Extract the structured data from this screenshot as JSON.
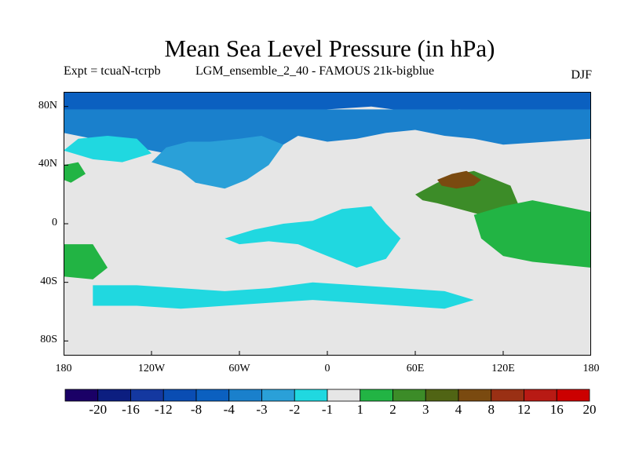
{
  "chart_data": {
    "type": "heatmap",
    "title": "Mean Sea Level Pressure (in hPa)",
    "left_annotation": "Expt = tcuaN-tcrpb",
    "center_annotation": "LGM_ensemble_2_40 - FAMOUS 21k-bigblue",
    "season": "DJF",
    "projection": "cylindrical-equidistant",
    "lon_range": [
      -180,
      180
    ],
    "lat_range": [
      -90,
      90
    ],
    "x_tick_labels": [
      "180",
      "120W",
      "60W",
      "0",
      "60E",
      "120E",
      "180"
    ],
    "y_tick_labels": [
      "80N",
      "40N",
      "0",
      "40S",
      "80S"
    ],
    "colorbar": {
      "levels": [
        "-20",
        "-16",
        "-12",
        "-8",
        "-4",
        "-3",
        "-2",
        "-1",
        "1",
        "2",
        "3",
        "4",
        "8",
        "12",
        "16",
        "20"
      ],
      "colors": [
        "#1a0066",
        "#0c1e80",
        "#1438a0",
        "#0a4db3",
        "#0b60c0",
        "#1a80cc",
        "#2aa0d8",
        "#20d8e0",
        "#e6e6e6",
        "#22b444",
        "#3c8c28",
        "#506414",
        "#7a4a10",
        "#9a3014",
        "#b81a14",
        "#cc0000"
      ]
    },
    "regions": [
      {
        "name": "arctic-low",
        "category": "-8 to -4",
        "lons": [
          -180,
          -150,
          -120,
          -90,
          -60,
          -30,
          0,
          30,
          60,
          90,
          120,
          150,
          180,
          180,
          -180
        ],
        "lats": [
          75,
          76,
          72,
          74,
          76,
          72,
          78,
          80,
          76,
          78,
          76,
          74,
          75,
          90,
          90
        ]
      },
      {
        "name": "northern-midlat-negative",
        "category": "-4 to -3",
        "lons": [
          -180,
          -150,
          -120,
          -100,
          -80,
          -60,
          -40,
          -20,
          0,
          20,
          40,
          60,
          80,
          100,
          120,
          150,
          180,
          180,
          -180
        ],
        "lats": [
          62,
          56,
          50,
          46,
          38,
          44,
          48,
          60,
          56,
          58,
          62,
          64,
          60,
          58,
          54,
          56,
          58,
          78,
          78
        ]
      },
      {
        "name": "north-america-atlantic-negative",
        "category": "-3 to -2",
        "lons": [
          -120,
          -100,
          -90,
          -70,
          -55,
          -40,
          -30,
          -45,
          -60,
          -80,
          -95,
          -110
        ],
        "lats": [
          42,
          36,
          28,
          24,
          30,
          40,
          54,
          60,
          58,
          56,
          56,
          52
        ]
      },
      {
        "name": "north-pacific-negative",
        "category": "-2 to -1",
        "lons": [
          -180,
          -160,
          -140,
          -120,
          -130,
          -150,
          -170
        ],
        "lats": [
          50,
          44,
          42,
          48,
          58,
          60,
          58
        ]
      },
      {
        "name": "tropical-atlantic-africa-negative",
        "category": "-2 to -1",
        "lons": [
          -70,
          -50,
          -30,
          -10,
          10,
          30,
          40,
          50,
          40,
          20,
          0,
          -20,
          -40,
          -60
        ],
        "lats": [
          -10,
          -4,
          0,
          2,
          10,
          12,
          0,
          -10,
          -24,
          -30,
          -22,
          -14,
          -12,
          -14
        ]
      },
      {
        "name": "southern-ocean-negative",
        "category": "-2 to -1",
        "lons": [
          -160,
          -130,
          -100,
          -70,
          -40,
          -10,
          20,
          50,
          80,
          100,
          80,
          50,
          20,
          -10,
          -40,
          -70,
          -100,
          -130,
          -160
        ],
        "lats": [
          -42,
          -42,
          -44,
          -46,
          -44,
          -40,
          -42,
          -44,
          -46,
          -52,
          -58,
          -56,
          -54,
          -52,
          -54,
          -56,
          -58,
          -56,
          -56
        ]
      },
      {
        "name": "asia-positive",
        "category": "2 to 3",
        "lons": [
          60,
          75,
          90,
          100,
          115,
          125,
          130,
          120,
          105,
          90,
          75,
          65
        ],
        "lats": [
          20,
          28,
          34,
          36,
          30,
          26,
          14,
          8,
          6,
          10,
          14,
          16
        ]
      },
      {
        "name": "tibet-positive",
        "category": "4 to 8",
        "lons": [
          75,
          85,
          95,
          105,
          100,
          88,
          78
        ],
        "lats": [
          30,
          34,
          36,
          30,
          26,
          24,
          26
        ]
      },
      {
        "name": "maritime-continent-positive",
        "category": "1 to 2",
        "lons": [
          100,
          120,
          140,
          160,
          180,
          180,
          160,
          140,
          120,
          105
        ],
        "lats": [
          6,
          12,
          16,
          12,
          8,
          -30,
          -28,
          -26,
          -22,
          -10
        ]
      },
      {
        "name": "north-atlantic-positive",
        "category": "1 to 2",
        "lons": [
          -180,
          -170,
          -165,
          -175,
          -180
        ],
        "lats": [
          40,
          42,
          34,
          28,
          30
        ]
      },
      {
        "name": "south-pacific-positive",
        "category": "1 to 2",
        "lons": [
          -180,
          -160,
          -150,
          -160,
          -180
        ],
        "lats": [
          -14,
          -14,
          -30,
          -38,
          -36
        ]
      }
    ]
  }
}
